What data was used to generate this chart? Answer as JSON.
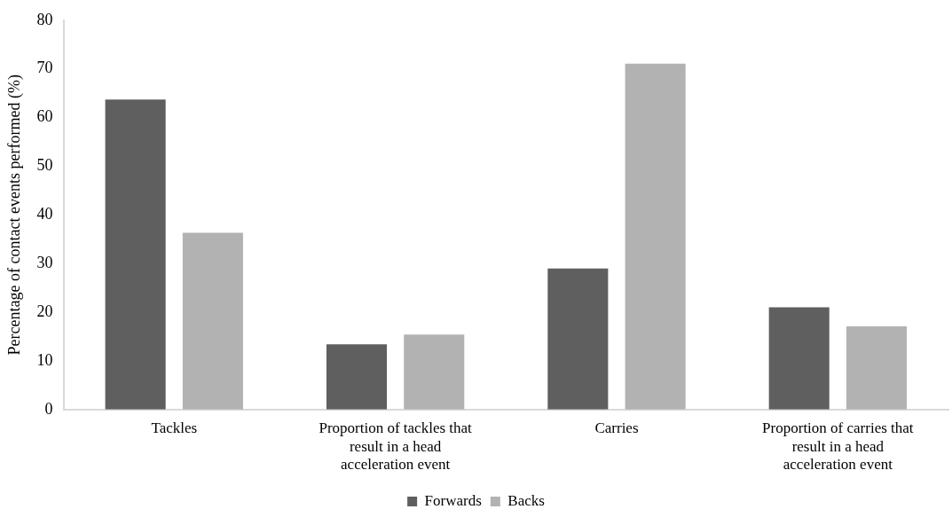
{
  "chart_data": {
    "type": "bar",
    "ylabel": "Percentage of contact events performed (%)",
    "categories": [
      "Tackles",
      "Proportion of tackles that result in a head acceleration event",
      "Carries",
      "Proportion of carries that result in a head acceleration event"
    ],
    "series": [
      {
        "name": "Forwards",
        "color": "#5f5f5f",
        "values": [
          63.7,
          13.4,
          29.0,
          21.0
        ]
      },
      {
        "name": "Backs",
        "color": "#b2b2b2",
        "values": [
          36.3,
          15.4,
          71.1,
          17.1
        ]
      }
    ],
    "ylim": [
      0,
      80
    ],
    "yticks": [
      0,
      10,
      20,
      30,
      40,
      50,
      60,
      70,
      80
    ],
    "grid": false,
    "legend": "bottom"
  }
}
